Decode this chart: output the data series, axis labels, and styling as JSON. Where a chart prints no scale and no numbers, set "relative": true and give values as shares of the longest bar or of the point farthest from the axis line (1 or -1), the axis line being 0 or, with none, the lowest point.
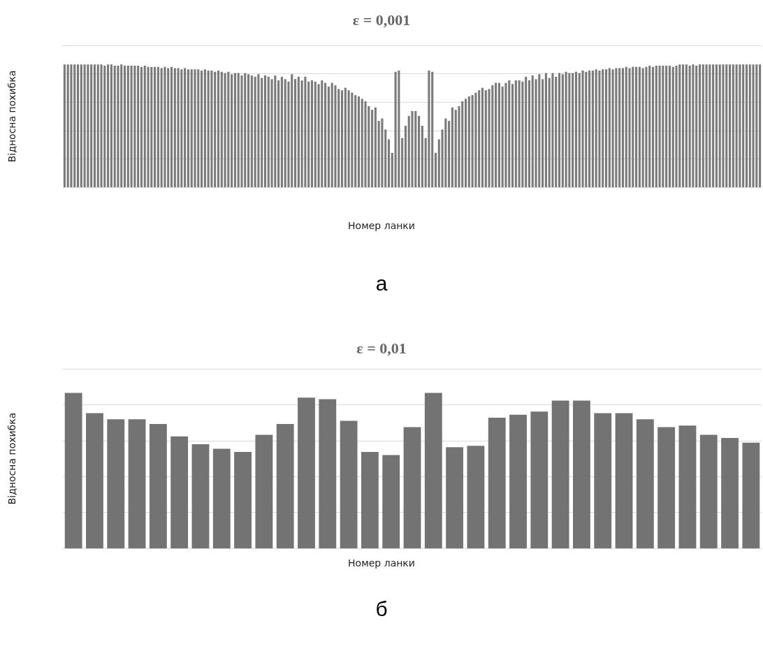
{
  "chart_data": [
    {
      "type": "bar",
      "title": "ε = 0,001",
      "xlabel": "Номер ланки",
      "ylabel": "Відносна похибка",
      "relative": true,
      "grid": "y",
      "color": "#7a7a7a",
      "annotations": [
        "а"
      ],
      "categories": [
        null,
        null,
        null,
        null,
        null,
        null,
        null,
        null,
        null,
        null,
        null,
        null,
        null,
        null,
        null,
        null,
        null,
        null,
        null,
        null,
        null,
        null,
        null,
        null,
        null,
        null,
        null,
        null,
        null,
        null,
        null,
        null,
        null,
        null,
        null,
        null,
        null,
        null,
        null,
        null,
        null,
        null,
        null,
        null,
        null,
        null,
        null,
        null,
        null,
        null,
        null,
        null,
        null,
        null,
        null,
        null,
        null,
        null,
        null,
        null,
        null,
        null,
        null,
        null,
        null,
        null,
        null,
        null,
        null,
        null,
        null,
        null,
        null,
        null,
        null,
        null,
        null,
        null,
        null,
        null,
        null,
        null,
        null,
        null,
        null,
        null,
        null,
        null,
        null,
        null,
        null,
        null,
        null,
        null,
        null,
        null,
        null,
        null,
        null,
        null,
        null,
        null,
        null,
        null,
        null,
        null,
        null,
        null,
        null,
        null,
        null,
        null,
        null,
        null,
        null,
        null,
        null,
        null,
        null,
        null,
        null,
        null,
        null,
        null,
        null,
        null,
        null,
        null,
        null,
        null,
        null,
        null,
        null,
        null,
        null,
        null,
        null,
        null,
        null,
        null,
        null,
        null,
        null,
        null,
        null,
        null,
        null,
        null,
        null,
        null,
        null,
        null,
        null,
        null,
        null,
        null,
        null,
        null,
        null,
        null,
        null,
        null,
        null,
        null,
        null,
        null,
        null,
        null,
        null,
        null,
        null,
        null,
        null,
        null,
        null,
        null,
        null,
        null,
        null,
        null,
        null,
        null,
        null,
        null,
        null,
        null,
        null,
        null,
        null,
        null,
        null,
        null,
        null,
        null,
        null,
        null,
        null,
        null,
        null,
        null,
        null,
        null,
        null,
        null,
        null,
        null,
        null,
        null,
        null
      ],
      "values": [
        1,
        1,
        1,
        1,
        1,
        1,
        1,
        1,
        1,
        1,
        1,
        1,
        0.99,
        1,
        1,
        0.99,
        0.99,
        1,
        0.99,
        0.99,
        0.99,
        0.99,
        0.99,
        0.98,
        0.99,
        0.98,
        0.98,
        0.98,
        0.98,
        0.97,
        0.98,
        0.97,
        0.98,
        0.97,
        0.97,
        0.96,
        0.97,
        0.96,
        0.96,
        0.96,
        0.96,
        0.95,
        0.96,
        0.95,
        0.95,
        0.94,
        0.95,
        0.94,
        0.93,
        0.94,
        0.92,
        0.93,
        0.93,
        0.91,
        0.93,
        0.92,
        0.91,
        0.9,
        0.92,
        0.89,
        0.91,
        0.9,
        0.88,
        0.91,
        0.87,
        0.9,
        0.88,
        0.86,
        0.92,
        0.88,
        0.9,
        0.87,
        0.9,
        0.86,
        0.87,
        0.86,
        0.84,
        0.87,
        0.85,
        0.82,
        0.85,
        0.83,
        0.8,
        0.79,
        0.81,
        0.79,
        0.77,
        0.75,
        0.74,
        0.72,
        0.7,
        0.66,
        0.63,
        0.65,
        0.54,
        0.56,
        0.47,
        0.39,
        0.28,
        0.94,
        0.95,
        0.4,
        0.5,
        0.58,
        0.62,
        0.62,
        0.58,
        0.5,
        0.4,
        0.95,
        0.94,
        0.28,
        0.39,
        0.47,
        0.56,
        0.54,
        0.65,
        0.63,
        0.66,
        0.7,
        0.72,
        0.74,
        0.75,
        0.77,
        0.79,
        0.81,
        0.79,
        0.8,
        0.83,
        0.85,
        0.85,
        0.82,
        0.85,
        0.87,
        0.84,
        0.87,
        0.87,
        0.86,
        0.9,
        0.87,
        0.91,
        0.88,
        0.92,
        0.88,
        0.93,
        0.89,
        0.93,
        0.9,
        0.93,
        0.92,
        0.94,
        0.93,
        0.93,
        0.94,
        0.93,
        0.95,
        0.94,
        0.95,
        0.95,
        0.96,
        0.95,
        0.96,
        0.96,
        0.97,
        0.96,
        0.97,
        0.97,
        0.97,
        0.98,
        0.97,
        0.98,
        0.98,
        0.98,
        0.97,
        0.98,
        0.99,
        0.98,
        0.99,
        0.99,
        0.99,
        0.99,
        0.99,
        0.98,
        0.99,
        1,
        1,
        1,
        0.99,
        1,
        0.99,
        1,
        1,
        1,
        1,
        1,
        1,
        1,
        1,
        1,
        1,
        1,
        1,
        1,
        1,
        1,
        1,
        1,
        1,
        1
      ]
    },
    {
      "type": "bar",
      "title": "ε = 0,01",
      "xlabel": "Номер ланки",
      "ylabel": "Відносна похибка",
      "relative": true,
      "grid": "y",
      "color": "#737373",
      "annotations": [
        "б"
      ],
      "categories": [
        null,
        null,
        null,
        null,
        null,
        null,
        null,
        null,
        null,
        null,
        null,
        null,
        null,
        null,
        null,
        null,
        null,
        null,
        null,
        null,
        null,
        null,
        null,
        null,
        null,
        null,
        null,
        null,
        null,
        null,
        null,
        null,
        null
      ],
      "values": [
        1,
        0.87,
        0.83,
        0.83,
        0.8,
        0.72,
        0.67,
        0.64,
        0.62,
        0.73,
        0.8,
        0.97,
        0.96,
        0.82,
        0.62,
        0.6,
        0.78,
        1,
        0.65,
        0.66,
        0.84,
        0.86,
        0.88,
        0.95,
        0.95,
        0.87,
        0.87,
        0.83,
        0.78,
        0.79,
        0.73,
        0.71,
        0.68
      ]
    }
  ]
}
